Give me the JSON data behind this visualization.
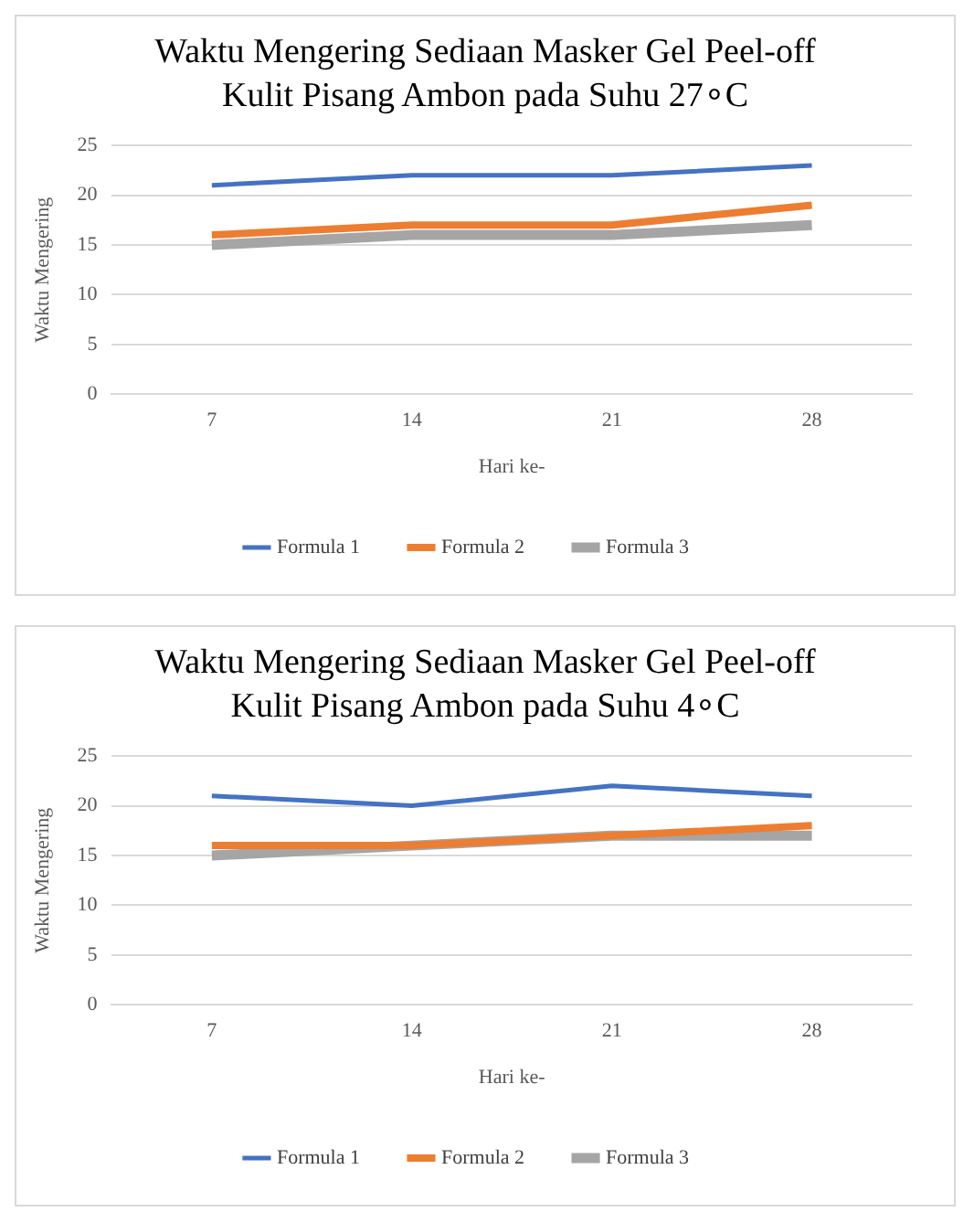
{
  "chart_data": [
    {
      "type": "line",
      "title": "Waktu Mengering Sediaan Masker Gel Peel-off Kulit Pisang Ambon pada Suhu 27∘C",
      "xlabel": "Hari ke-",
      "ylabel": "Waktu Mengering",
      "categories": [
        "7",
        "14",
        "21",
        "28"
      ],
      "series": [
        {
          "name": "Formula 1",
          "color": "#4472c4",
          "values": [
            21,
            22,
            22,
            23
          ]
        },
        {
          "name": "Formula 2",
          "color": "#ed7d31",
          "values": [
            16,
            17,
            17,
            19
          ]
        },
        {
          "name": "Formula 3",
          "color": "#a5a5a5",
          "values": [
            15,
            16,
            16,
            17
          ]
        }
      ],
      "ylim": [
        0,
        25
      ],
      "yticks": [
        0,
        5,
        10,
        15,
        20,
        25
      ],
      "grid": "y",
      "legend": "bottom",
      "marker": "none",
      "line_style": "solid"
    },
    {
      "type": "line",
      "title": "Waktu Mengering Sediaan Masker Gel Peel-off Kulit Pisang Ambon pada Suhu 4∘C",
      "xlabel": "Hari ke-",
      "ylabel": "Waktu Mengering",
      "categories": [
        "7",
        "14",
        "21",
        "28"
      ],
      "series": [
        {
          "name": "Formula 1",
          "color": "#4472c4",
          "values": [
            21,
            20,
            22,
            21
          ]
        },
        {
          "name": "Formula 2",
          "color": "#ed7d31",
          "values": [
            16,
            16,
            17,
            18
          ]
        },
        {
          "name": "Formula 3",
          "color": "#a5a5a5",
          "values": [
            15,
            16,
            17,
            17
          ]
        }
      ],
      "ylim": [
        0,
        25
      ],
      "yticks": [
        0,
        5,
        10,
        15,
        20,
        25
      ],
      "grid": "y",
      "legend": "bottom",
      "marker": "none",
      "line_style": "solid"
    }
  ]
}
